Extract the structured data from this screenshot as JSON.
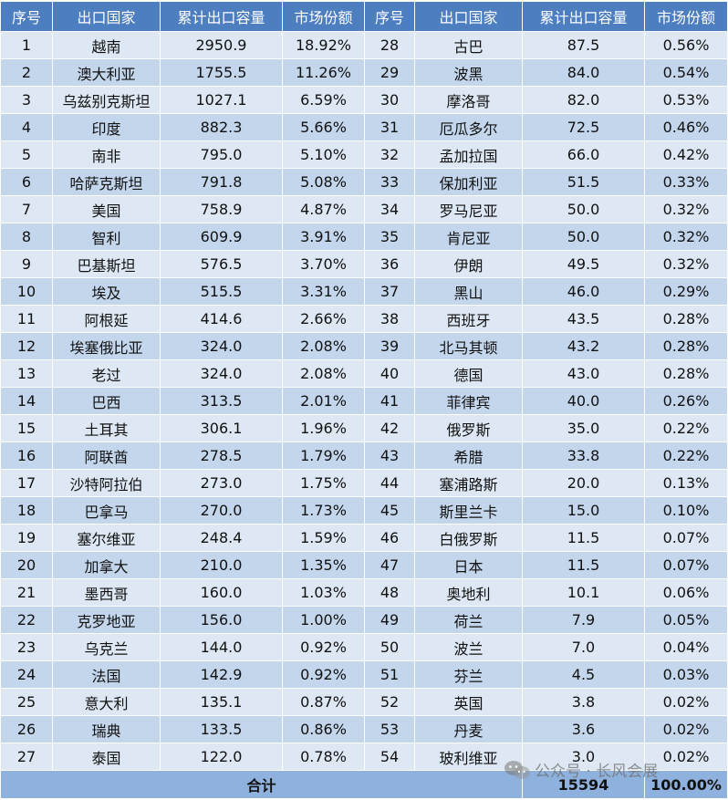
{
  "headers": [
    "序号",
    "出口国家",
    "累计出口容量",
    "市场份额",
    "序号",
    "出口国家",
    "累计出口容量",
    "市场份额"
  ],
  "rows": [
    [
      "1",
      "越南",
      "2950.9",
      "18.92%",
      "28",
      "古巴",
      "87.5",
      "0.56%"
    ],
    [
      "2",
      "澳大利亚",
      "1755.5",
      "11.26%",
      "29",
      "波黑",
      "84.0",
      "0.54%"
    ],
    [
      "3",
      "乌兹别克斯坦",
      "1027.1",
      "6.59%",
      "30",
      "摩洛哥",
      "82.0",
      "0.53%"
    ],
    [
      "4",
      "印度",
      "882.3",
      "5.66%",
      "31",
      "厄瓜多尔",
      "72.5",
      "0.46%"
    ],
    [
      "5",
      "南非",
      "795.0",
      "5.10%",
      "32",
      "孟加拉国",
      "66.0",
      "0.42%"
    ],
    [
      "6",
      "哈萨克斯坦",
      "791.8",
      "5.08%",
      "33",
      "保加利亚",
      "51.5",
      "0.33%"
    ],
    [
      "7",
      "美国",
      "758.9",
      "4.87%",
      "34",
      "罗马尼亚",
      "50.0",
      "0.32%"
    ],
    [
      "8",
      "智利",
      "609.9",
      "3.91%",
      "35",
      "肯尼亚",
      "50.0",
      "0.32%"
    ],
    [
      "9",
      "巴基斯坦",
      "576.5",
      "3.70%",
      "36",
      "伊朗",
      "49.5",
      "0.32%"
    ],
    [
      "10",
      "埃及",
      "515.5",
      "3.31%",
      "37",
      "黑山",
      "46.0",
      "0.29%"
    ],
    [
      "11",
      "阿根延",
      "414.6",
      "2.66%",
      "38",
      "西班牙",
      "43.5",
      "0.28%"
    ],
    [
      "12",
      "埃塞俄比亚",
      "324.0",
      "2.08%",
      "39",
      "北马其顿",
      "43.2",
      "0.28%"
    ],
    [
      "13",
      "老过",
      "324.0",
      "2.08%",
      "40",
      "德国",
      "43.0",
      "0.28%"
    ],
    [
      "14",
      "巴西",
      "313.5",
      "2.01%",
      "41",
      "菲律宾",
      "40.0",
      "0.26%"
    ],
    [
      "15",
      "土耳其",
      "306.1",
      "1.96%",
      "42",
      "俄罗斯",
      "35.0",
      "0.22%"
    ],
    [
      "16",
      "阿联酋",
      "278.5",
      "1.79%",
      "43",
      "希腊",
      "33.8",
      "0.22%"
    ],
    [
      "17",
      "沙特阿拉伯",
      "273.0",
      "1.75%",
      "44",
      "塞浦路斯",
      "20.0",
      "0.13%"
    ],
    [
      "18",
      "巴拿马",
      "270.0",
      "1.73%",
      "45",
      "斯里兰卡",
      "15.0",
      "0.10%"
    ],
    [
      "19",
      "塞尔维亚",
      "248.4",
      "1.59%",
      "46",
      "白俄罗斯",
      "11.5",
      "0.07%"
    ],
    [
      "20",
      "加拿大",
      "210.0",
      "1.35%",
      "47",
      "日本",
      "11.5",
      "0.07%"
    ],
    [
      "21",
      "墨西哥",
      "160.0",
      "1.03%",
      "48",
      "奥地利",
      "10.1",
      "0.06%"
    ],
    [
      "22",
      "克罗地亚",
      "156.0",
      "1.00%",
      "49",
      "荷兰",
      "7.9",
      "0.05%"
    ],
    [
      "23",
      "乌克兰",
      "144.0",
      "0.92%",
      "50",
      "波兰",
      "7.0",
      "0.04%"
    ],
    [
      "24",
      "法国",
      "142.9",
      "0.92%",
      "51",
      "芬兰",
      "4.5",
      "0.03%"
    ],
    [
      "25",
      "意大利",
      "135.1",
      "0.87%",
      "52",
      "英国",
      "3.8",
      "0.02%"
    ],
    [
      "26",
      "瑞典",
      "133.5",
      "0.86%",
      "53",
      "丹麦",
      "3.6",
      "0.02%"
    ],
    [
      "27",
      "泰国",
      "122.0",
      "0.78%",
      "54",
      "玻利维亚",
      "3.0",
      "0.02%"
    ]
  ],
  "footer": {
    "label": "合计",
    "total": "15594",
    "share": "100.00%"
  },
  "watermark": {
    "text": "公众号 · 长风会展",
    "icon": "wechat-icon"
  },
  "colors": {
    "header": "#4d7ec0",
    "row_light": "#dde8f4",
    "row_dark": "#c3d6ec",
    "footer": "#8fb1dd"
  }
}
